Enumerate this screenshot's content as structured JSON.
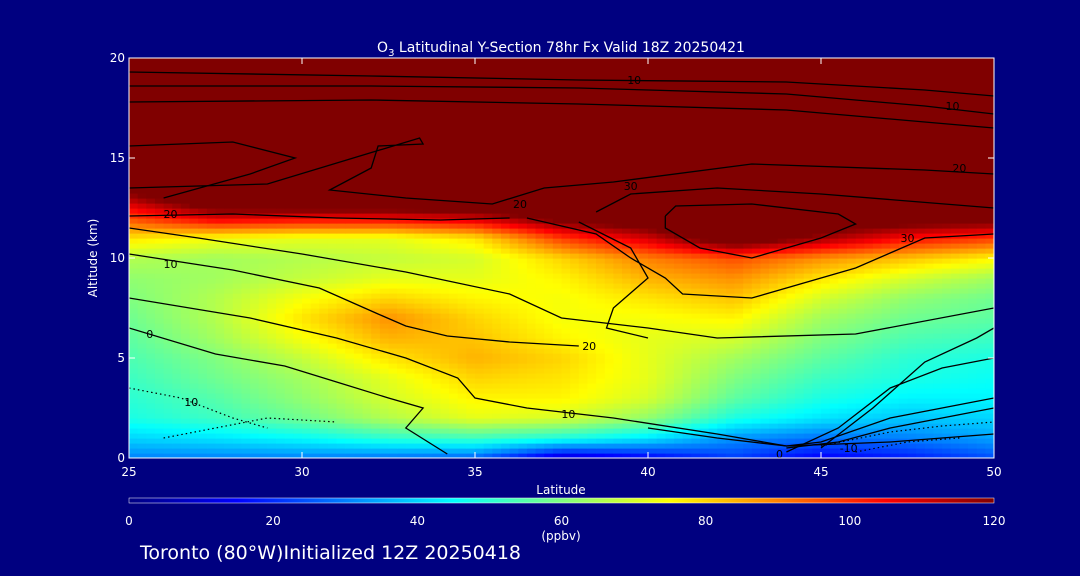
{
  "chart_data": {
    "type": "heatmap",
    "title_prefix": "O",
    "title_sub": "3",
    "title_rest": " Latitudinal Y-Section 78hr  Fx Valid 18Z 20250421",
    "xlabel": "Latitude",
    "ylabel": "Altitude (km)",
    "xlim": [
      25,
      50
    ],
    "ylim": [
      0,
      20
    ],
    "x_ticks": [
      25,
      30,
      35,
      40,
      45,
      50
    ],
    "y_ticks": [
      0,
      5,
      10,
      15,
      20
    ],
    "colorbar": {
      "min": 0,
      "max": 120,
      "ticks": [
        0,
        20,
        40,
        60,
        80,
        100,
        120
      ],
      "unit": "(ppbv)",
      "colors": [
        "#000080",
        "#0000ff",
        "#0080ff",
        "#00ffff",
        "#80ff80",
        "#ffff00",
        "#ff8000",
        "#ff0000",
        "#800000"
      ]
    },
    "x": [
      25,
      27.5,
      30,
      32.5,
      35,
      37.5,
      40,
      42.5,
      45,
      47.5,
      50
    ],
    "y": [
      0,
      1,
      2,
      3,
      4,
      5,
      6,
      7,
      8,
      9,
      10,
      11,
      12,
      13,
      14,
      15,
      16,
      17,
      18,
      19,
      20
    ],
    "z": [
      [
        30,
        30,
        30,
        28,
        26,
        8,
        14,
        22,
        14,
        18,
        24
      ],
      [
        40,
        42,
        45,
        50,
        52,
        48,
        42,
        32,
        28,
        30,
        34
      ],
      [
        48,
        52,
        58,
        66,
        72,
        70,
        62,
        48,
        42,
        38,
        40
      ],
      [
        50,
        55,
        62,
        70,
        76,
        76,
        70,
        56,
        48,
        44,
        44
      ],
      [
        52,
        58,
        64,
        72,
        80,
        78,
        72,
        60,
        52,
        48,
        46
      ],
      [
        54,
        60,
        68,
        78,
        84,
        80,
        72,
        64,
        56,
        50,
        48
      ],
      [
        56,
        64,
        74,
        84,
        82,
        76,
        72,
        70,
        60,
        54,
        52
      ],
      [
        58,
        66,
        78,
        88,
        80,
        74,
        74,
        76,
        64,
        58,
        56
      ],
      [
        60,
        66,
        74,
        80,
        76,
        74,
        78,
        82,
        70,
        62,
        58
      ],
      [
        62,
        64,
        68,
        72,
        72,
        76,
        84,
        88,
        78,
        70,
        64
      ],
      [
        66,
        64,
        66,
        68,
        70,
        80,
        90,
        96,
        88,
        82,
        76
      ],
      [
        78,
        74,
        72,
        72,
        78,
        98,
        110,
        130,
        116,
        104,
        98
      ],
      [
        96,
        108,
        106,
        106,
        110,
        124,
        130,
        140,
        130,
        128,
        126
      ],
      [
        115,
        134,
        140,
        140,
        140,
        140,
        140,
        140,
        140,
        140,
        140
      ],
      [
        130,
        140,
        140,
        140,
        140,
        140,
        140,
        140,
        140,
        140,
        140
      ],
      [
        140,
        140,
        140,
        140,
        140,
        140,
        140,
        140,
        140,
        140,
        140
      ],
      [
        140,
        140,
        140,
        140,
        140,
        140,
        140,
        140,
        140,
        140,
        140
      ],
      [
        140,
        140,
        140,
        140,
        140,
        140,
        140,
        140,
        140,
        140,
        140
      ],
      [
        140,
        140,
        140,
        140,
        140,
        140,
        140,
        140,
        140,
        140,
        140
      ],
      [
        140,
        140,
        140,
        140,
        140,
        140,
        140,
        140,
        140,
        140,
        140
      ],
      [
        140,
        140,
        140,
        140,
        140,
        140,
        140,
        140,
        140,
        140,
        140
      ]
    ],
    "contour_labels": [
      {
        "text": "10",
        "x": 39.6,
        "y": 18.9
      },
      {
        "text": "10",
        "x": 48.8,
        "y": 17.6
      },
      {
        "text": "20",
        "x": 49.0,
        "y": 14.5
      },
      {
        "text": "20",
        "x": 36.3,
        "y": 12.7
      },
      {
        "text": "20",
        "x": 26.2,
        "y": 12.2
      },
      {
        "text": "30",
        "x": 39.5,
        "y": 13.6
      },
      {
        "text": "30",
        "x": 47.5,
        "y": 11.0
      },
      {
        "text": "10",
        "x": 26.2,
        "y": 9.7
      },
      {
        "text": "20",
        "x": 38.3,
        "y": 5.6
      },
      {
        "text": "0",
        "x": 25.6,
        "y": 6.2
      },
      {
        "text": "10",
        "x": 26.8,
        "y": 2.8
      },
      {
        "text": "10",
        "x": 37.7,
        "y": 2.2
      },
      {
        "text": "0",
        "x": 43.8,
        "y": 0.2
      },
      {
        "text": "-10",
        "x": 45.8,
        "y": 0.5
      }
    ],
    "contour_lines": [
      [
        [
          25,
          19.3
        ],
        [
          32,
          19.1
        ],
        [
          38,
          18.9
        ],
        [
          44,
          18.8
        ],
        [
          48,
          18.4
        ],
        [
          50,
          18.1
        ]
      ],
      [
        [
          25,
          18.6
        ],
        [
          32,
          18.6
        ],
        [
          38,
          18.5
        ],
        [
          44,
          18.2
        ],
        [
          48,
          17.6
        ],
        [
          50,
          17.2
        ]
      ],
      [
        [
          25,
          17.8
        ],
        [
          32,
          17.9
        ],
        [
          38,
          17.7
        ],
        [
          44,
          17.4
        ],
        [
          48,
          16.8
        ],
        [
          50,
          16.5
        ]
      ],
      [
        [
          25,
          15.6
        ],
        [
          28,
          15.8
        ],
        [
          29.8,
          15.0
        ],
        [
          28.5,
          14.2
        ],
        [
          26,
          13.0
        ]
      ],
      [
        [
          25,
          13.5
        ],
        [
          29,
          13.7
        ],
        [
          33.4,
          16.0
        ],
        [
          33.5,
          15.7
        ],
        [
          32.2,
          15.6
        ],
        [
          32,
          14.5
        ],
        [
          30.8,
          13.4
        ],
        [
          33,
          13.0
        ],
        [
          35.5,
          12.7
        ],
        [
          37,
          13.5
        ],
        [
          39,
          13.8
        ],
        [
          43,
          14.7
        ],
        [
          48,
          14.4
        ],
        [
          50,
          14.2
        ]
      ],
      [
        [
          38.5,
          12.3
        ],
        [
          39.5,
          13.2
        ],
        [
          42,
          13.5
        ],
        [
          45,
          13.2
        ],
        [
          50,
          12.5
        ]
      ],
      [
        [
          40.5,
          12.1
        ],
        [
          40.8,
          12.6
        ],
        [
          43,
          12.7
        ],
        [
          45.5,
          12.2
        ],
        [
          46,
          11.7
        ],
        [
          45,
          11.0
        ],
        [
          43,
          10.0
        ],
        [
          41.5,
          10.5
        ],
        [
          40.5,
          11.5
        ],
        [
          40.5,
          12.1
        ]
      ],
      [
        [
          25,
          12.1
        ],
        [
          28,
          12.2
        ],
        [
          31,
          12.0
        ],
        [
          34,
          11.9
        ],
        [
          36,
          12.0
        ]
      ],
      [
        [
          36.5,
          12.0
        ],
        [
          38.5,
          11.2
        ],
        [
          39.5,
          10.0
        ],
        [
          40.5,
          9.0
        ],
        [
          41,
          8.2
        ],
        [
          43,
          8.0
        ],
        [
          46,
          9.5
        ],
        [
          48,
          11.0
        ],
        [
          50,
          11.2
        ]
      ],
      [
        [
          25,
          11.5
        ],
        [
          27,
          11.0
        ],
        [
          30,
          10.2
        ],
        [
          33,
          9.3
        ],
        [
          36,
          8.2
        ],
        [
          37.5,
          7.0
        ],
        [
          40,
          6.5
        ],
        [
          42,
          6.0
        ],
        [
          46,
          6.2
        ],
        [
          50,
          7.5
        ]
      ],
      [
        [
          25,
          10.2
        ],
        [
          28,
          9.4
        ],
        [
          30.5,
          8.5
        ],
        [
          32.2,
          7.2
        ],
        [
          33,
          6.6
        ],
        [
          34.2,
          6.1
        ],
        [
          36,
          5.8
        ],
        [
          38,
          5.6
        ]
      ],
      [
        [
          38,
          11.8
        ],
        [
          39.5,
          10.5
        ],
        [
          40,
          9.0
        ],
        [
          39,
          7.5
        ],
        [
          38.8,
          6.5
        ],
        [
          40,
          6.0
        ]
      ],
      [
        [
          25,
          8.0
        ],
        [
          28.5,
          7.0
        ],
        [
          31,
          6.0
        ],
        [
          33,
          5.0
        ],
        [
          34.5,
          4.0
        ],
        [
          35,
          3.0
        ],
        [
          36.5,
          2.5
        ],
        [
          39,
          2.0
        ],
        [
          42,
          1.2
        ],
        [
          44,
          0.6
        ],
        [
          47,
          0.8
        ],
        [
          50,
          1.2
        ]
      ],
      [
        [
          25,
          6.5
        ],
        [
          27.5,
          5.2
        ],
        [
          29.5,
          4.6
        ],
        [
          31,
          3.8
        ],
        [
          32.5,
          3.0
        ],
        [
          33.5,
          2.5
        ],
        [
          33,
          1.5
        ],
        [
          34.2,
          0.2
        ]
      ],
      [
        [
          40,
          1.5
        ],
        [
          42,
          1.0
        ],
        [
          44,
          0.6
        ],
        [
          45,
          0.8
        ],
        [
          47,
          2.0
        ],
        [
          50,
          3.0
        ]
      ],
      [
        [
          44,
          0.3
        ],
        [
          45.5,
          1.5
        ],
        [
          47,
          3.5
        ],
        [
          48.5,
          4.5
        ],
        [
          50,
          5.0
        ]
      ],
      [
        [
          45,
          0.5
        ],
        [
          46.5,
          2.5
        ],
        [
          48,
          4.8
        ],
        [
          49.5,
          6.0
        ],
        [
          50,
          6.5
        ]
      ],
      [
        [
          44,
          0.5
        ],
        [
          45.5,
          0.8
        ],
        [
          47,
          1.5
        ],
        [
          48.5,
          2.0
        ],
        [
          50,
          2.5
        ]
      ]
    ],
    "contour_dotted": [
      [
        [
          25,
          3.5
        ],
        [
          26.5,
          3.0
        ],
        [
          28,
          2.0
        ],
        [
          29,
          1.5
        ]
      ],
      [
        [
          26,
          1.0
        ],
        [
          27.5,
          1.5
        ],
        [
          29,
          2.0
        ],
        [
          31,
          1.8
        ]
      ],
      [
        [
          45,
          0.6
        ],
        [
          47,
          1.3
        ],
        [
          48.5,
          1.6
        ],
        [
          50,
          1.8
        ]
      ],
      [
        [
          46,
          0.3
        ],
        [
          47.5,
          0.8
        ],
        [
          49,
          1.0
        ]
      ]
    ]
  },
  "footer": {
    "city": "Toronto (80",
    "degree": "°",
    "rest": "W)Initialized 12Z 20250418"
  }
}
